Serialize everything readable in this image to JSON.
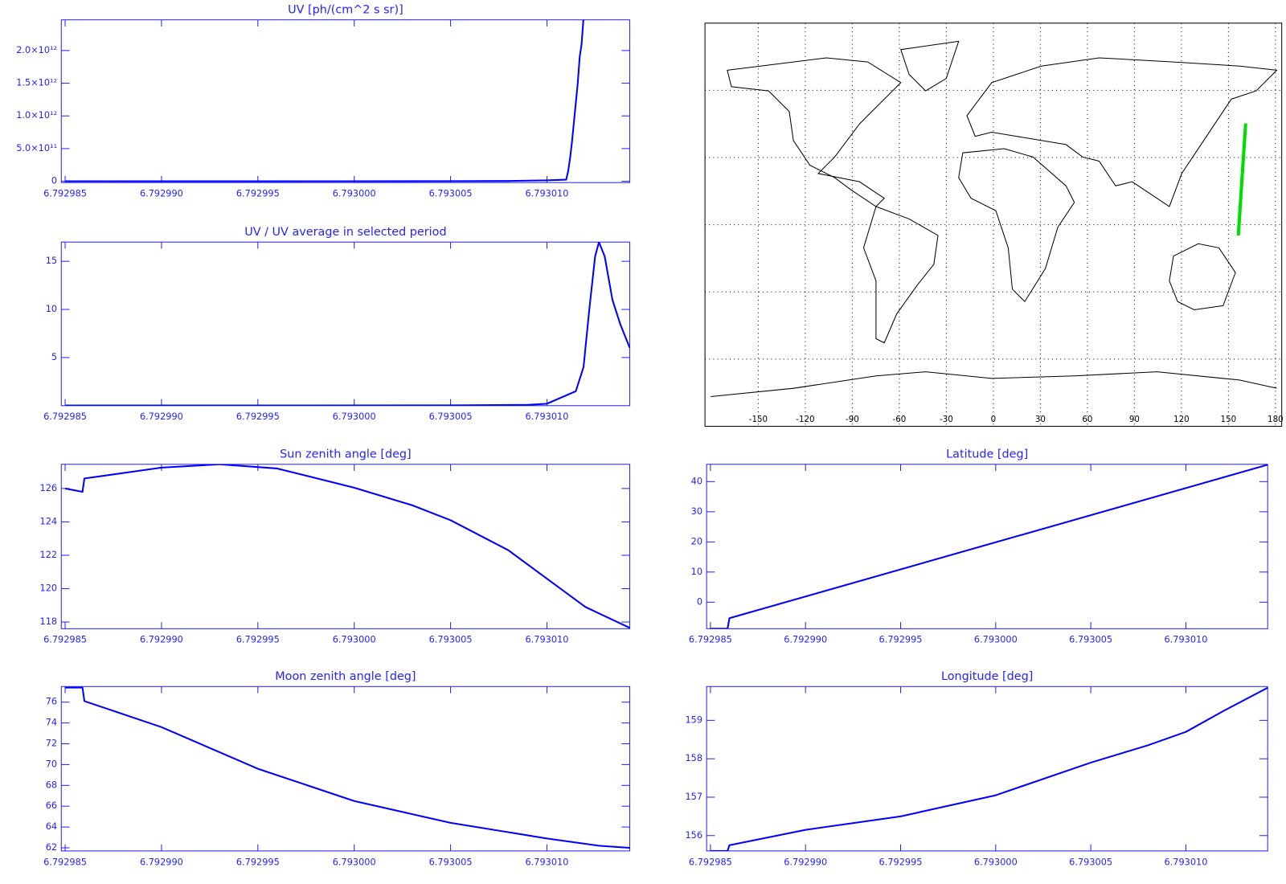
{
  "chart_data": [
    {
      "type": "line",
      "title": "UV [ph/(cm^2 s sr)]",
      "color": "#0000ff",
      "x": [
        6.792985,
        6.79299,
        6.792995,
        6.793,
        6.793005,
        6.793008,
        6.79301,
        6.793011,
        6.7930111,
        6.7930112,
        6.7930113,
        6.7930114,
        6.7930115,
        6.7930116,
        6.7930117,
        6.7930118,
        6.7930119,
        6.793012
      ],
      "values": [
        1000000000,
        0,
        0,
        1000000000,
        2000000000,
        5000000000,
        15000000000,
        25000000000,
        150000000000,
        350000000000,
        600000000000,
        900000000000,
        1200000000000,
        1500000000000,
        1900000000000,
        2100000000000,
        2500000000000,
        2600000000000
      ],
      "xlim": [
        6.7929848,
        6.7930143
      ],
      "xticks": [
        6.792985,
        {
          "value": 6.79299,
          "label": "6.792990"
        },
        6.792995,
        {
          "value": 6.793,
          "label": "6.793000"
        },
        6.793005,
        {
          "value": 6.79301,
          "label": "6.793010"
        }
      ],
      "ylim": [
        -20000000000,
        2470000000000
      ],
      "yticks": [
        0,
        {
          "value": 500000000000,
          "label": "5.0×10¹¹"
        },
        {
          "value": 1000000000000,
          "label": "1.0×10¹²"
        },
        {
          "value": 1500000000000,
          "label": "1.5×10¹²"
        },
        {
          "value": 2000000000000,
          "label": "2.0×10¹²"
        }
      ]
    },
    {
      "type": "line",
      "title": "UV / UV average in selected period",
      "color": "#0000ff",
      "x": [
        6.792985,
        6.792995,
        6.793005,
        6.793009,
        6.79301,
        6.7930115,
        6.7930119,
        6.7930122,
        6.7930125,
        6.7930127,
        6.793013,
        6.7930134,
        6.7930138,
        6.7930143
      ],
      "values": [
        0.02,
        0.02,
        0.03,
        0.08,
        0.2,
        1.5,
        4,
        10,
        15.5,
        17,
        15.5,
        11,
        8.5,
        6
      ],
      "xlim": [
        6.7929848,
        6.7930143
      ],
      "xticks": [
        6.792985,
        {
          "value": 6.79299,
          "label": "6.792990"
        },
        6.792995,
        {
          "value": 6.793,
          "label": "6.793000"
        },
        6.793005,
        {
          "value": 6.79301,
          "label": "6.793010"
        }
      ],
      "ylim": [
        0,
        17
      ],
      "yticks": [
        5,
        10,
        15
      ]
    },
    {
      "type": "line",
      "title": "Sun zenith angle [deg]",
      "color": "#0000ff",
      "x": [
        6.792985,
        6.7929859,
        6.792986,
        6.79299,
        6.792993,
        6.792996,
        6.793,
        6.793003,
        6.793005,
        6.793008,
        6.79301,
        6.793012,
        6.7930143
      ],
      "values": [
        126.0,
        125.8,
        126.6,
        127.25,
        127.45,
        127.2,
        126.05,
        125.0,
        124.1,
        122.3,
        120.6,
        118.9,
        117.65
      ],
      "xlim": [
        6.7929848,
        6.7930143
      ],
      "xticks": [
        6.792985,
        {
          "value": 6.79299,
          "label": "6.792990"
        },
        6.792995,
        {
          "value": 6.793,
          "label": "6.793000"
        },
        6.793005,
        {
          "value": 6.79301,
          "label": "6.793010"
        }
      ],
      "ylim": [
        117.6,
        127.45
      ],
      "yticks": [
        118,
        120,
        122,
        124,
        126
      ]
    },
    {
      "type": "line",
      "title": "Moon zenith angle [deg]",
      "color": "#0000ff",
      "x": [
        6.792985,
        6.7929859,
        6.792986,
        6.79299,
        6.792995,
        6.793,
        6.793005,
        6.79301,
        6.7930127,
        6.7930143
      ],
      "values": [
        77.4,
        77.4,
        76.1,
        73.6,
        69.6,
        66.5,
        64.4,
        62.9,
        62.2,
        62.0
      ],
      "xlim": [
        6.7929848,
        6.7930143
      ],
      "xticks": [
        6.792985,
        {
          "value": 6.79299,
          "label": "6.792990"
        },
        6.792995,
        {
          "value": 6.793,
          "label": "6.793000"
        },
        6.793005,
        {
          "value": 6.79301,
          "label": "6.793010"
        }
      ],
      "ylim": [
        61.7,
        77.5
      ],
      "yticks": [
        62,
        64,
        66,
        68,
        70,
        72,
        74,
        76
      ]
    },
    {
      "type": "map",
      "color": "#00dd00",
      "x": [
        156.3,
        158.6,
        161
      ],
      "values": [
        -4.8,
        20,
        45.2
      ],
      "xlim": [
        -184,
        184
      ],
      "xticks": [
        -150,
        -120,
        -90,
        -60,
        -30,
        0,
        30,
        60,
        90,
        120,
        150,
        180
      ],
      "ylim": [
        -90,
        90
      ],
      "yticks": [
        -60,
        -30,
        0,
        30,
        60
      ]
    },
    {
      "type": "line",
      "title": "Latitude [deg]",
      "color": "#0000ff",
      "x": [
        6.792985,
        6.7929859,
        6.792986,
        6.7930143
      ],
      "values": [
        -8.8,
        -8.8,
        -5.3,
        45.6
      ],
      "xlim": [
        6.7929848,
        6.7930143
      ],
      "xticks": [
        6.792985,
        {
          "value": 6.79299,
          "label": "6.792990"
        },
        6.792995,
        {
          "value": 6.793,
          "label": "6.793000"
        },
        6.793005,
        {
          "value": 6.79301,
          "label": "6.793010"
        }
      ],
      "ylim": [
        -8.8,
        45.75
      ],
      "yticks": [
        0,
        10,
        20,
        30,
        40
      ]
    },
    {
      "type": "line",
      "title": "Longitude [deg]",
      "color": "#0000ff",
      "x": [
        6.792985,
        6.7929859,
        6.792986,
        6.79299,
        6.792995,
        6.793,
        6.793005,
        6.793008,
        6.79301,
        6.793012,
        6.7930143
      ],
      "values": [
        155.6,
        155.6,
        155.75,
        156.15,
        156.5,
        157.05,
        157.9,
        158.35,
        158.7,
        159.25,
        159.85
      ],
      "xlim": [
        6.7929848,
        6.7930143
      ],
      "xticks": [
        6.792985,
        {
          "value": 6.79299,
          "label": "6.792990"
        },
        6.792995,
        {
          "value": 6.793,
          "label": "6.793000"
        },
        6.793005,
        {
          "value": 6.79301,
          "label": "6.793010"
        }
      ],
      "ylim": [
        155.6,
        159.88
      ],
      "yticks": [
        156,
        157,
        158,
        159
      ]
    }
  ]
}
